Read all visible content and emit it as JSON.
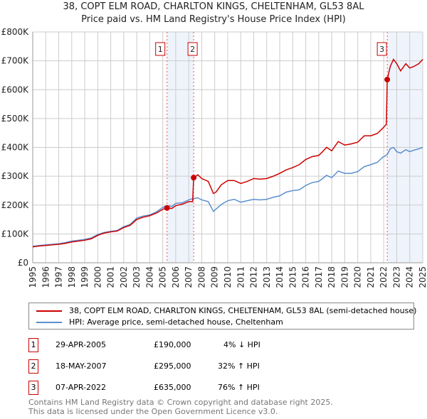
{
  "chart_data": {
    "type": "line",
    "title": "38, COPT ELM ROAD, CHARLTON KINGS, CHELTENHAM, GL53 8AL",
    "subtitle": "Price paid vs. HM Land Registry's House Price Index (HPI)",
    "xlabel": "",
    "ylabel": "",
    "xlim": [
      1995,
      2025
    ],
    "ylim": [
      0,
      800000
    ],
    "yticks": [
      {
        "v": 0,
        "label": "£0"
      },
      {
        "v": 100000,
        "label": "£100K"
      },
      {
        "v": 200000,
        "label": "£200K"
      },
      {
        "v": 300000,
        "label": "£300K"
      },
      {
        "v": 400000,
        "label": "£400K"
      },
      {
        "v": 500000,
        "label": "£500K"
      },
      {
        "v": 600000,
        "label": "£600K"
      },
      {
        "v": 700000,
        "label": "£700K"
      },
      {
        "v": 800000,
        "label": "£800K"
      }
    ],
    "xticks": [
      "1995",
      "1996",
      "1997",
      "1998",
      "1999",
      "2000",
      "2001",
      "2002",
      "2003",
      "2004",
      "2005",
      "2006",
      "2007",
      "2008",
      "2009",
      "2010",
      "2011",
      "2012",
      "2013",
      "2014",
      "2015",
      "2016",
      "2017",
      "2018",
      "2019",
      "2020",
      "2021",
      "2022",
      "2023",
      "2024",
      "2025"
    ],
    "grid": true,
    "series": [
      {
        "name": "38, COPT ELM ROAD, CHARLTON KINGS, CHELTENHAM, GL53 8AL (semi-detached house)",
        "color": "#cc0000",
        "x": [
          1995,
          1995.5,
          1996,
          1996.5,
          1997,
          1997.5,
          1998,
          1998.5,
          1999,
          1999.5,
          2000,
          2000.5,
          2001,
          2001.5,
          2002,
          2002.5,
          2003,
          2003.5,
          2004,
          2004.5,
          2005,
          2005.33,
          2005.7,
          2006,
          2006.5,
          2007,
          2007.3,
          2007.38,
          2007.7,
          2008,
          2008.5,
          2008.9,
          2009.1,
          2009.5,
          2010,
          2010.5,
          2011,
          2011.5,
          2012,
          2012.5,
          2013,
          2013.5,
          2014,
          2014.5,
          2015,
          2015.5,
          2016,
          2016.5,
          2017,
          2017.3,
          2017.6,
          2018,
          2018.5,
          2019,
          2019.5,
          2020,
          2020.5,
          2021,
          2021.5,
          2021.9,
          2022.2,
          2022.27,
          2022.5,
          2022.75,
          2023,
          2023.3,
          2023.7,
          2024,
          2024.3,
          2024.7,
          2025
        ],
        "y": [
          55000,
          58000,
          60000,
          62000,
          64000,
          67000,
          72000,
          75000,
          78000,
          83000,
          95000,
          103000,
          107000,
          110000,
          122000,
          130000,
          150000,
          158000,
          163000,
          172000,
          185000,
          190000,
          188000,
          198000,
          203000,
          212000,
          212000,
          295000,
          305000,
          292000,
          282000,
          240000,
          245000,
          270000,
          285000,
          285000,
          275000,
          282000,
          292000,
          290000,
          292000,
          300000,
          310000,
          322000,
          330000,
          340000,
          358000,
          368000,
          372000,
          385000,
          400000,
          388000,
          420000,
          408000,
          412000,
          418000,
          440000,
          440000,
          448000,
          465000,
          480000,
          635000,
          680000,
          705000,
          690000,
          665000,
          690000,
          675000,
          680000,
          690000,
          705000
        ]
      },
      {
        "name": "HPI: Average price, semi-detached house, Cheltenham",
        "color": "#5b8fd0",
        "x": [
          1995,
          1995.5,
          1996,
          1996.5,
          1997,
          1997.5,
          1998,
          1998.5,
          1999,
          1999.5,
          2000,
          2000.5,
          2001,
          2001.5,
          2002,
          2002.5,
          2003,
          2003.5,
          2004,
          2004.5,
          2005,
          2005.33,
          2005.7,
          2006,
          2006.5,
          2007,
          2007.38,
          2007.7,
          2008,
          2008.5,
          2008.9,
          2009.1,
          2009.5,
          2010,
          2010.5,
          2011,
          2011.5,
          2012,
          2012.5,
          2013,
          2013.5,
          2014,
          2014.5,
          2015,
          2015.5,
          2016,
          2016.5,
          2017,
          2017.3,
          2017.6,
          2018,
          2018.5,
          2019,
          2019.5,
          2020,
          2020.5,
          2021,
          2021.5,
          2021.9,
          2022.27,
          2022.5,
          2022.75,
          2023,
          2023.3,
          2023.7,
          2024,
          2024.3,
          2024.7,
          2025
        ],
        "y": [
          57000,
          60000,
          62000,
          64000,
          66000,
          70000,
          75000,
          78000,
          81000,
          86000,
          98000,
          105000,
          109000,
          112000,
          125000,
          133000,
          155000,
          162000,
          166000,
          176000,
          192000,
          198000,
          195000,
          206000,
          208000,
          218000,
          223000,
          225000,
          218000,
          212000,
          178000,
          186000,
          202000,
          215000,
          220000,
          210000,
          215000,
          220000,
          218000,
          220000,
          227000,
          232000,
          245000,
          250000,
          253000,
          268000,
          278000,
          282000,
          292000,
          303000,
          295000,
          318000,
          310000,
          310000,
          316000,
          333000,
          340000,
          348000,
          365000,
          375000,
          395000,
          400000,
          385000,
          380000,
          392000,
          385000,
          390000,
          395000,
          400000
        ]
      }
    ],
    "shaded_ranges": [
      [
        2005.33,
        2007.38
      ],
      [
        2022.27,
        2025
      ]
    ],
    "sales": [
      {
        "n": "1",
        "date": "29-APR-2005",
        "price": "£190,000",
        "hpi": "4% ↓ HPI",
        "x": 2005.33,
        "y": 190000
      },
      {
        "n": "2",
        "date": "18-MAY-2007",
        "price": "£295,000",
        "hpi": "32% ↑ HPI",
        "x": 2007.38,
        "y": 295000
      },
      {
        "n": "3",
        "date": "07-APR-2022",
        "price": "£635,000",
        "hpi": "76% ↑ HPI",
        "x": 2022.27,
        "y": 635000
      }
    ],
    "legend": "below"
  },
  "footer": {
    "line1": "Contains HM Land Registry data © Crown copyright and database right 2025.",
    "line2": "This data is licensed under the Open Government Licence v3.0."
  }
}
